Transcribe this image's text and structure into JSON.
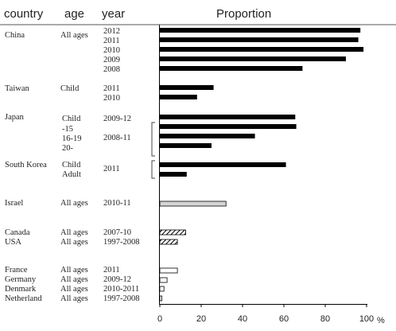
{
  "headers": {
    "country": "country",
    "age": "age",
    "year": "year",
    "proportion": "Proportion"
  },
  "unit": "%",
  "chart_data": {
    "type": "bar",
    "orientation": "horizontal",
    "title": "",
    "xlabel": "%",
    "xlim": [
      0,
      100
    ],
    "xticks": [
      0,
      20,
      40,
      60,
      80,
      100
    ],
    "grid": false,
    "legend": "none",
    "colors": {
      "black": "#000000",
      "gray": "#d4d4d4",
      "hatch": "#000000",
      "white": "#ffffff"
    },
    "groups": [
      {
        "country": "China",
        "age": "All ages",
        "bars": [
          {
            "year": "2012",
            "value": 97,
            "style": "black"
          },
          {
            "year": "2011",
            "value": 96,
            "style": "black"
          },
          {
            "year": "2010",
            "value": 98.5,
            "style": "black"
          },
          {
            "year": "2009",
            "value": 90,
            "style": "black"
          },
          {
            "year": "2008",
            "value": 69,
            "style": "black"
          }
        ]
      },
      {
        "country": "Taiwan",
        "age": "Child",
        "bars": [
          {
            "year": "2011",
            "value": 26,
            "style": "black"
          },
          {
            "year": "2010",
            "value": 18,
            "style": "black"
          }
        ]
      },
      {
        "country": "Japan",
        "age": "Child",
        "sub_ages": [
          "-15",
          "16-19",
          "20-"
        ],
        "years": [
          "2009-12",
          "2008-11"
        ],
        "bars": [
          {
            "value": 65.5,
            "style": "black"
          },
          {
            "value": 66,
            "style": "black"
          },
          {
            "value": 46,
            "style": "black"
          },
          {
            "value": 25,
            "style": "black"
          }
        ]
      },
      {
        "country": "South Korea",
        "sub_ages": [
          "Child",
          "Adult"
        ],
        "years": [
          "2011"
        ],
        "bars": [
          {
            "value": 61,
            "style": "black"
          },
          {
            "value": 13,
            "style": "black"
          }
        ]
      },
      {
        "country": "Israel",
        "age": "All ages",
        "bars": [
          {
            "year": "2010-11",
            "value": 32,
            "style": "gray"
          }
        ]
      },
      {
        "country": "Canada",
        "age": "All ages",
        "bars": [
          {
            "year": "2007-10",
            "value": 12.5,
            "style": "hatch"
          }
        ]
      },
      {
        "country": "USA",
        "age": "All ages",
        "bars": [
          {
            "year": "1997-2008",
            "value": 8.5,
            "style": "hatch"
          }
        ]
      },
      {
        "country": "France",
        "age": "All ages",
        "bars": [
          {
            "year": "2011",
            "value": 8.5,
            "style": "white"
          }
        ]
      },
      {
        "country": "Germany",
        "age": "All ages",
        "bars": [
          {
            "year": "2009-12",
            "value": 3.5,
            "style": "white"
          }
        ]
      },
      {
        "country": "Denmark",
        "age": "All ages",
        "bars": [
          {
            "year": "2010-2011",
            "value": 2,
            "style": "white"
          }
        ]
      },
      {
        "country": "Netherland",
        "age": "All ages",
        "bars": [
          {
            "year": "1997-2008",
            "value": 1,
            "style": "white"
          }
        ]
      }
    ]
  }
}
